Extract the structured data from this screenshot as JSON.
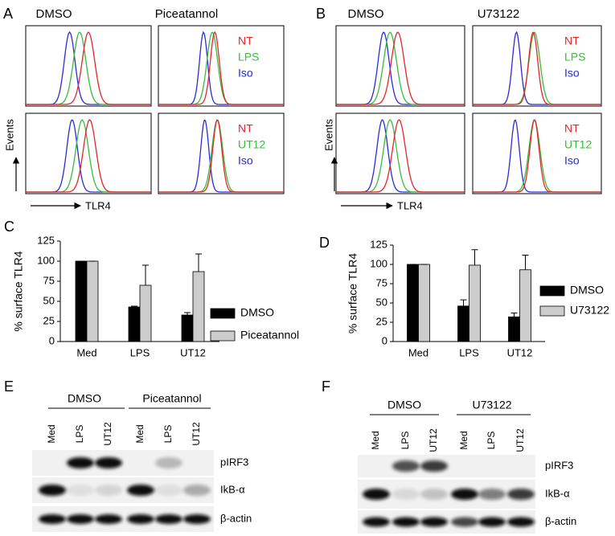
{
  "flow_panels": [
    {
      "letter": "A",
      "conditions": [
        "DMSO",
        "Piceatannol"
      ],
      "legends": [
        [
          "NT",
          "LPS",
          "Iso"
        ],
        [
          "NT",
          "UT12",
          "Iso"
        ]
      ],
      "colors": [
        "#e3262b",
        "#3cba3c",
        "#2b2bd8"
      ],
      "y_label": "Events",
      "x_label": "TLR4"
    },
    {
      "letter": "B",
      "conditions": [
        "DMSO",
        "U73122"
      ],
      "legends": [
        [
          "NT",
          "LPS",
          "Iso"
        ],
        [
          "NT",
          "UT12",
          "Iso"
        ]
      ],
      "colors": [
        "#e3262b",
        "#3cba3c",
        "#2b2bd8"
      ],
      "y_label": "Events",
      "x_label": "TLR4"
    }
  ],
  "chart_data": [
    {
      "type": "bar",
      "panel": "C",
      "y_label": "% surface TLR4",
      "categories": [
        "Med",
        "LPS",
        "UT12"
      ],
      "series": [
        {
          "name": "DMSO",
          "color": "#000000",
          "values": [
            100,
            43,
            33
          ],
          "errors": [
            0,
            1,
            3
          ]
        },
        {
          "name": "Piceatannol",
          "color": "#cccccc",
          "values": [
            100,
            70,
            87
          ],
          "errors": [
            0,
            25,
            22
          ]
        }
      ],
      "ylim": [
        0,
        125
      ],
      "yticks": [
        0,
        25,
        50,
        75,
        100,
        125
      ]
    },
    {
      "type": "bar",
      "panel": "D",
      "y_label": "% surface TLR4",
      "categories": [
        "Med",
        "LPS",
        "UT12"
      ],
      "series": [
        {
          "name": "DMSO",
          "color": "#000000",
          "values": [
            100,
            46,
            32
          ],
          "errors": [
            0,
            8,
            5
          ]
        },
        {
          "name": "U73122",
          "color": "#cccccc",
          "values": [
            100,
            99,
            93
          ],
          "errors": [
            0,
            20,
            19
          ]
        }
      ],
      "ylim": [
        0,
        125
      ],
      "yticks": [
        0,
        25,
        50,
        75,
        100,
        125
      ]
    }
  ],
  "blot_panels": [
    {
      "letter": "E",
      "groups": [
        "DMSO",
        "Piceatannol"
      ],
      "lanes": [
        "Med",
        "LPS",
        "UT12",
        "Med",
        "LPS",
        "UT12"
      ],
      "rows": [
        "pIRF3",
        "IkB-α",
        "β-actin"
      ]
    },
    {
      "letter": "F",
      "groups": [
        "DMSO",
        "U73122"
      ],
      "lanes": [
        "Med",
        "LPS",
        "UT12",
        "Med",
        "LPS",
        "UT12"
      ],
      "rows": [
        "pIRF3",
        "IkB-α",
        "β-actin"
      ]
    }
  ]
}
